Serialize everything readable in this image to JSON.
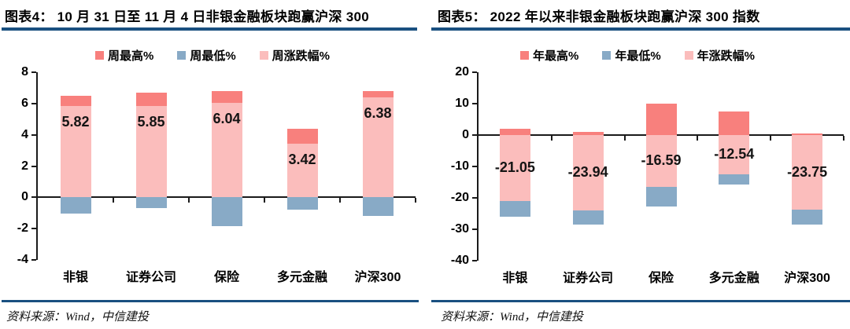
{
  "panels": [
    {
      "title": "图表4： 10 月 31 日至 11 月 4 日非银金融板块跑赢沪深 300",
      "source": "资料来源：Wind，中信建投"
    },
    {
      "title": "图表5： 2022 年以来非银金融板块跑赢沪深 300 指数",
      "source": "资料来源：Wind，中信建投"
    }
  ],
  "colors": {
    "high": "#F8807D",
    "low": "#88AAC6",
    "change": "#FBBDBC",
    "rule": "#1a5080",
    "axis": "#1a1a1a"
  },
  "chart_data": [
    {
      "type": "bar",
      "title": "图表4： 10 月 31 日至 11 月 4 日非银金融板块跑赢沪深 300",
      "categories": [
        "非银",
        "证券公司",
        "保险",
        "多元金融",
        "沪深300"
      ],
      "series": [
        {
          "name": "周最高%",
          "role": "high",
          "color": "#F8807D",
          "values": [
            6.5,
            6.7,
            6.8,
            4.4,
            6.8
          ]
        },
        {
          "name": "周最低%",
          "role": "low",
          "color": "#88AAC6",
          "values": [
            -1.05,
            -0.7,
            -1.85,
            -0.8,
            -1.2
          ]
        },
        {
          "name": "周涨跌幅%",
          "role": "change",
          "color": "#FBBDBC",
          "values": [
            5.82,
            5.85,
            6.04,
            3.42,
            6.38
          ],
          "labeled": true
        }
      ],
      "data_labels": [
        "5.82",
        "5.85",
        "6.04",
        "3.42",
        "6.38"
      ],
      "ylim": [
        -4,
        8
      ],
      "yticks": [
        8,
        6,
        4,
        2,
        0,
        -2,
        -4
      ],
      "legend_position": "top",
      "grid": false
    },
    {
      "type": "bar",
      "title": "图表5： 2022 年以来非银金融板块跑赢沪深 300 指数",
      "categories": [
        "非银",
        "证券公司",
        "保险",
        "多元金融",
        "沪深300"
      ],
      "series": [
        {
          "name": "年最高%",
          "role": "high",
          "color": "#F8807D",
          "values": [
            2.0,
            1.0,
            10.0,
            7.5,
            0.6
          ]
        },
        {
          "name": "年最低%",
          "role": "low",
          "color": "#88AAC6",
          "values": [
            -26.0,
            -28.5,
            -22.8,
            -15.8,
            -28.6
          ]
        },
        {
          "name": "年涨跌幅%",
          "role": "change",
          "color": "#FBBDBC",
          "values": [
            -21.05,
            -23.94,
            -16.59,
            -12.54,
            -23.75
          ],
          "labeled": true
        }
      ],
      "data_labels": [
        "-21.05",
        "-23.94",
        "-16.59",
        "-12.54",
        "-23.75"
      ],
      "ylim": [
        -40,
        20
      ],
      "yticks": [
        20,
        10,
        0,
        -10,
        -20,
        -30,
        -40
      ],
      "legend_position": "top",
      "grid": false
    }
  ]
}
